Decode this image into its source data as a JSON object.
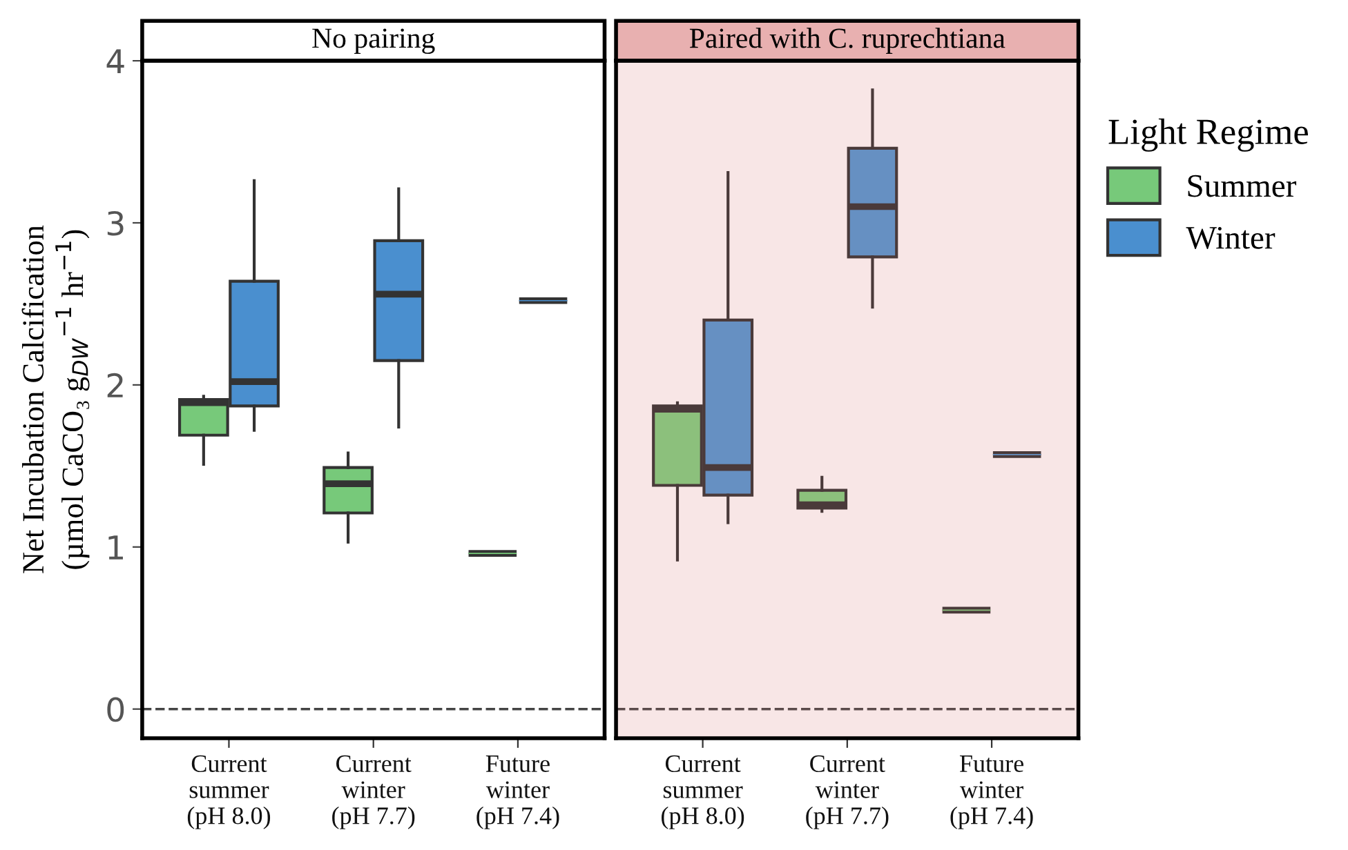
{
  "chart_data": [
    {
      "type": "box",
      "title": "No pairing",
      "ylabel": "Net Incubation Calcification\n(µmol CaCO₃ g$_{DW}$$^{−1}$ hr$^{−1}$)",
      "categories": [
        "Current\nsummer\n(pH 8.0)",
        "Current\nwinter\n(pH 7.7)",
        "Future\nwinter\n(pH 7.4)"
      ],
      "ylim": [
        -0.18,
        4
      ],
      "yticks": [
        0,
        1,
        2,
        3,
        4
      ],
      "grid": false,
      "legend": "right",
      "legend_title": "Light Regime",
      "ref_lines": [
        {
          "axis": "y",
          "value": 0,
          "line_style": "dashed",
          "color": "#444444"
        }
      ],
      "series": [
        {
          "name": "Summer",
          "color": "#77c97a",
          "boxes": [
            {
              "low": 1.51,
              "q1": 1.69,
              "median": 1.89,
              "q3": 1.91,
              "high": 1.93
            },
            {
              "low": 1.03,
              "q1": 1.21,
              "median": 1.39,
              "q3": 1.49,
              "high": 1.58
            },
            {
              "low": 0.96,
              "q1": 0.96,
              "median": 0.96,
              "q3": 0.96,
              "high": 0.96
            }
          ]
        },
        {
          "name": "Winter",
          "color": "#4a8fcf",
          "boxes": [
            {
              "low": 1.72,
              "q1": 1.87,
              "median": 2.02,
              "q3": 2.64,
              "high": 3.26
            },
            {
              "low": 1.74,
              "q1": 2.15,
              "median": 2.56,
              "q3": 2.89,
              "high": 3.21
            },
            {
              "low": 2.52,
              "q1": 2.52,
              "median": 2.52,
              "q3": 2.52,
              "high": 2.52
            }
          ]
        }
      ]
    },
    {
      "type": "box",
      "title": "Paired with C. ruprechtiana",
      "categories": [
        "Current\nsummer\n(pH 8.0)",
        "Current\nwinter\n(pH 7.7)",
        "Future\nwinter\n(pH 7.4)"
      ],
      "ylim": [
        -0.18,
        4
      ],
      "yticks": [
        0,
        1,
        2,
        3,
        4
      ],
      "tick_labels": "x",
      "grid": false,
      "ref_lines": [
        {
          "axis": "y",
          "value": 0,
          "line_style": "dashed",
          "color": "#5a4a4a"
        }
      ],
      "series": [
        {
          "color": "#8cc07c",
          "boxes": [
            {
              "low": 0.92,
              "q1": 1.38,
              "median": 1.85,
              "q3": 1.87,
              "high": 1.89
            },
            {
              "low": 1.22,
              "q1": 1.24,
              "median": 1.26,
              "q3": 1.35,
              "high": 1.43
            },
            {
              "low": 0.61,
              "q1": 0.61,
              "median": 0.61,
              "q3": 0.61,
              "high": 0.61
            }
          ]
        },
        {
          "color": "#6690c2",
          "boxes": [
            {
              "low": 1.15,
              "q1": 1.32,
              "median": 1.49,
              "q3": 2.4,
              "high": 3.31
            },
            {
              "low": 2.48,
              "q1": 2.79,
              "median": 3.1,
              "q3": 3.46,
              "high": 3.82
            },
            {
              "low": 1.57,
              "q1": 1.57,
              "median": 1.57,
              "q3": 1.57,
              "high": 1.57
            }
          ]
        }
      ]
    }
  ]
}
